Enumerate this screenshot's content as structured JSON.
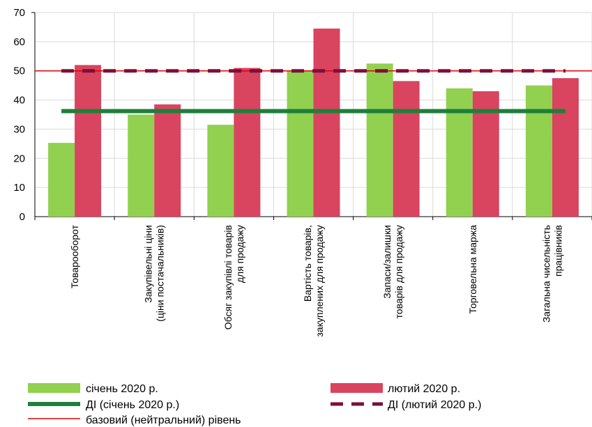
{
  "chart_data": {
    "type": "bar",
    "categories": [
      [
        "Товарооборот"
      ],
      [
        "Закупівельні ціни",
        "(ціни постачальників)"
      ],
      [
        "Обсяг закупівлі товарів",
        "для продажу"
      ],
      [
        "Вартість товарів,",
        "закуплених для продажу"
      ],
      [
        "Запаси/залишки",
        "товарів для продажу"
      ],
      [
        "Торговельна маржа"
      ],
      [
        "Загальна чисельність",
        "працівників"
      ]
    ],
    "series": [
      {
        "name": "січень 2020 р.",
        "color": "#92d050",
        "values": [
          25.3,
          35.0,
          31.5,
          50.0,
          52.5,
          44.0,
          45.0
        ]
      },
      {
        "name": "лютий 2020 р.",
        "color": "#d9445f",
        "values": [
          52.0,
          38.5,
          51.0,
          64.5,
          46.5,
          43.0,
          47.5
        ]
      }
    ],
    "lines": [
      {
        "name": "ДІ (січень 2020 р.)",
        "value": 36.2,
        "color": "#1e7f3a",
        "style": "solid"
      },
      {
        "name": "ДІ (лютий 2020 р.)",
        "value": 50.0,
        "color": "#7b0f3a",
        "style": "dashed"
      },
      {
        "name": "базовий (нейтральний) рівень",
        "value": 50.0,
        "color": "#e00000",
        "style": "thin"
      }
    ],
    "yticks": [
      "0",
      "10",
      "20",
      "30",
      "40",
      "50",
      "60",
      "70"
    ],
    "ylim": [
      0,
      70
    ],
    "grid": true,
    "legend_position": "bottom"
  }
}
